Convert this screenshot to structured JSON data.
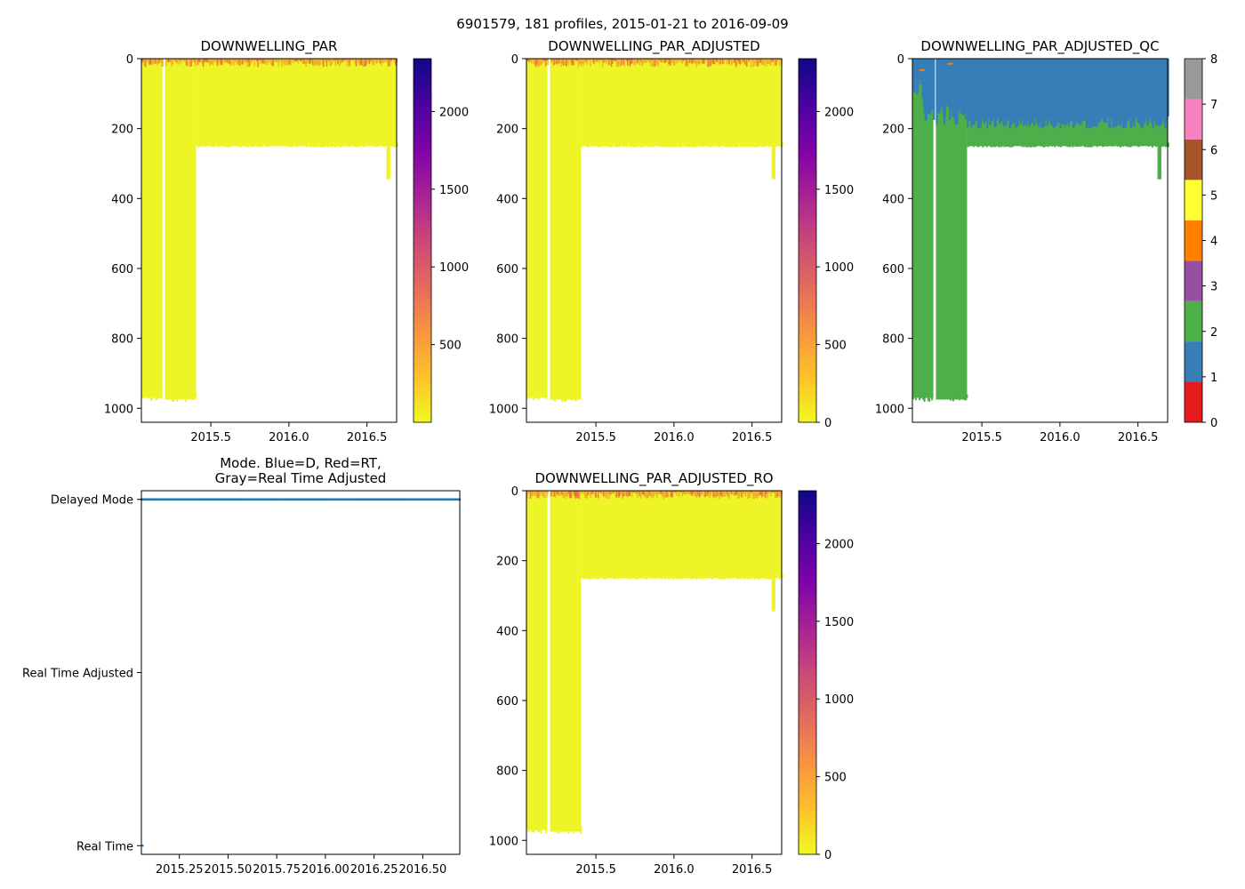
{
  "figure": {
    "suptitle": "6901579, 181 profiles, 2015-01-21 to 2016-09-09"
  },
  "colors": {
    "par_yellow": "#eef527",
    "par_orange": "#f0a22a",
    "qc_blue": "#377eb8",
    "qc_green": "#4daf4a",
    "mode_blue": "#1f77b4",
    "qc_scale": [
      "#e41a1c",
      "#377eb8",
      "#4daf4a",
      "#984ea3",
      "#ff7f00",
      "#ffff33",
      "#a65628",
      "#f781bf",
      "#999999"
    ]
  },
  "chart_data": [
    {
      "id": "downwelling_par",
      "type": "heatmap",
      "title": "DOWNWELLING_PAR",
      "xlabel": "",
      "ylabel": "",
      "xlim": [
        2015.055,
        2016.69
      ],
      "ylim": [
        1040,
        0
      ],
      "xticks": [
        2015.5,
        2016.0,
        2016.5
      ],
      "xticklabels": [
        "2015.5",
        "2016.0",
        "2016.5"
      ],
      "yticks": [
        0,
        200,
        400,
        600,
        800,
        1000
      ],
      "yticklabels": [
        "0",
        "200",
        "400",
        "600",
        "800",
        "1000"
      ],
      "colormap": "plasma_r",
      "clim": [
        0,
        2340
      ],
      "colorbar_ticks": [
        500,
        1000,
        1500,
        2000
      ],
      "colorbar_ticklabels": [
        "500",
        "1000",
        "1500",
        "2000"
      ],
      "profile_depth_segments": [
        {
          "from": 2015.055,
          "to": 2015.19,
          "max_depth": 970
        },
        {
          "from": 2015.205,
          "to": 2015.405,
          "max_depth": 975
        },
        {
          "from": 2015.405,
          "to": 2016.69,
          "max_depth": 250
        },
        {
          "from": 2016.625,
          "to": 2016.65,
          "max_depth": 345
        }
      ],
      "gap": [
        2015.19,
        2015.205
      ],
      "surface_high_values_depth": 20
    },
    {
      "id": "downwelling_par_adjusted",
      "type": "heatmap",
      "title": "DOWNWELLING_PAR_ADJUSTED",
      "xlabel": "",
      "ylabel": "",
      "xlim": [
        2015.055,
        2016.69
      ],
      "ylim": [
        1040,
        0
      ],
      "xticks": [
        2015.5,
        2016.0,
        2016.5
      ],
      "xticklabels": [
        "2015.5",
        "2016.0",
        "2016.5"
      ],
      "yticks": [
        0,
        200,
        400,
        600,
        800,
        1000
      ],
      "yticklabels": [
        "0",
        "200",
        "400",
        "600",
        "800",
        "1000"
      ],
      "colormap": "plasma_r",
      "clim": [
        0,
        2340
      ],
      "colorbar_ticks": [
        0,
        500,
        1000,
        1500,
        2000
      ],
      "colorbar_ticklabels": [
        "0",
        "500",
        "1000",
        "1500",
        "2000"
      ],
      "profile_depth_segments": [
        {
          "from": 2015.055,
          "to": 2015.19,
          "max_depth": 970
        },
        {
          "from": 2015.205,
          "to": 2015.405,
          "max_depth": 975
        },
        {
          "from": 2015.405,
          "to": 2016.69,
          "max_depth": 250
        },
        {
          "from": 2016.625,
          "to": 2016.65,
          "max_depth": 345
        }
      ],
      "gap": [
        2015.19,
        2015.205
      ],
      "surface_high_values_depth": 20
    },
    {
      "id": "downwelling_par_adjusted_qc",
      "type": "heatmap",
      "title": "DOWNWELLING_PAR_ADJUSTED_QC",
      "xlabel": "",
      "ylabel": "",
      "xlim": [
        2015.055,
        2016.69
      ],
      "ylim": [
        1040,
        0
      ],
      "xticks": [
        2015.5,
        2016.0,
        2016.5
      ],
      "xticklabels": [
        "2015.5",
        "2016.0",
        "2016.5"
      ],
      "yticks": [
        0,
        200,
        400,
        600,
        800,
        1000
      ],
      "yticklabels": [
        "0",
        "200",
        "400",
        "600",
        "800",
        "1000"
      ],
      "colormap": "qc_categorical",
      "clim": [
        0,
        8
      ],
      "colorbar_ticks": [
        0,
        1,
        2,
        3,
        4,
        5,
        6,
        7,
        8
      ],
      "colorbar_ticklabels": [
        "0",
        "1",
        "2",
        "3",
        "4",
        "5",
        "6",
        "7",
        "8"
      ],
      "qc_flag_1_depth_range": [
        0,
        200
      ],
      "qc_flag_2_below": 180,
      "profile_depth_segments": [
        {
          "from": 2015.055,
          "to": 2015.19,
          "max_depth": 970
        },
        {
          "from": 2015.205,
          "to": 2015.405,
          "max_depth": 975
        },
        {
          "from": 2015.405,
          "to": 2016.69,
          "max_depth": 250
        },
        {
          "from": 2016.625,
          "to": 2016.65,
          "max_depth": 345
        }
      ],
      "gap": [
        2015.19,
        2015.205
      ]
    },
    {
      "id": "data_mode",
      "type": "scatter",
      "title": "Mode. Blue=D, Red=RT,\nGray=Real Time Adjusted",
      "xlabel": "",
      "ylabel": "",
      "xlim": [
        2015.055,
        2016.69
      ],
      "xticks": [
        2015.25,
        2015.5,
        2015.75,
        2016.0,
        2016.25,
        2016.5
      ],
      "xticklabels": [
        "2015.25",
        "2015.50",
        "2015.75",
        "2016.00",
        "2016.25",
        "2016.50"
      ],
      "yticks": [
        2,
        1,
        0
      ],
      "yticklabels": [
        "Delayed Mode",
        "Real Time Adjusted",
        "Real Time"
      ],
      "ylim": [
        -0.05,
        2.05
      ],
      "series": [
        {
          "category": "Delayed Mode",
          "y": 2,
          "x_start": 2015.055,
          "x_end": 2016.69,
          "count": 181
        }
      ]
    },
    {
      "id": "downwelling_par_adjusted_ro",
      "type": "heatmap",
      "title": "DOWNWELLING_PAR_ADJUSTED_RO",
      "xlabel": "",
      "ylabel": "",
      "xlim": [
        2015.055,
        2016.69
      ],
      "ylim": [
        1040,
        0
      ],
      "xticks": [
        2015.5,
        2016.0,
        2016.5
      ],
      "xticklabels": [
        "2015.5",
        "2016.0",
        "2016.5"
      ],
      "yticks": [
        0,
        200,
        400,
        600,
        800,
        1000
      ],
      "yticklabels": [
        "0",
        "200",
        "400",
        "600",
        "800",
        "1000"
      ],
      "colormap": "plasma_r",
      "clim": [
        0,
        2340
      ],
      "colorbar_ticks": [
        0,
        500,
        1000,
        1500,
        2000
      ],
      "colorbar_ticklabels": [
        "0",
        "500",
        "1000",
        "1500",
        "2000"
      ],
      "profile_depth_segments": [
        {
          "from": 2015.055,
          "to": 2015.19,
          "max_depth": 970
        },
        {
          "from": 2015.205,
          "to": 2015.405,
          "max_depth": 975
        },
        {
          "from": 2015.405,
          "to": 2016.69,
          "max_depth": 250
        },
        {
          "from": 2016.625,
          "to": 2016.65,
          "max_depth": 345
        }
      ],
      "gap": [
        2015.19,
        2015.205
      ],
      "surface_high_values_depth": 20
    }
  ]
}
